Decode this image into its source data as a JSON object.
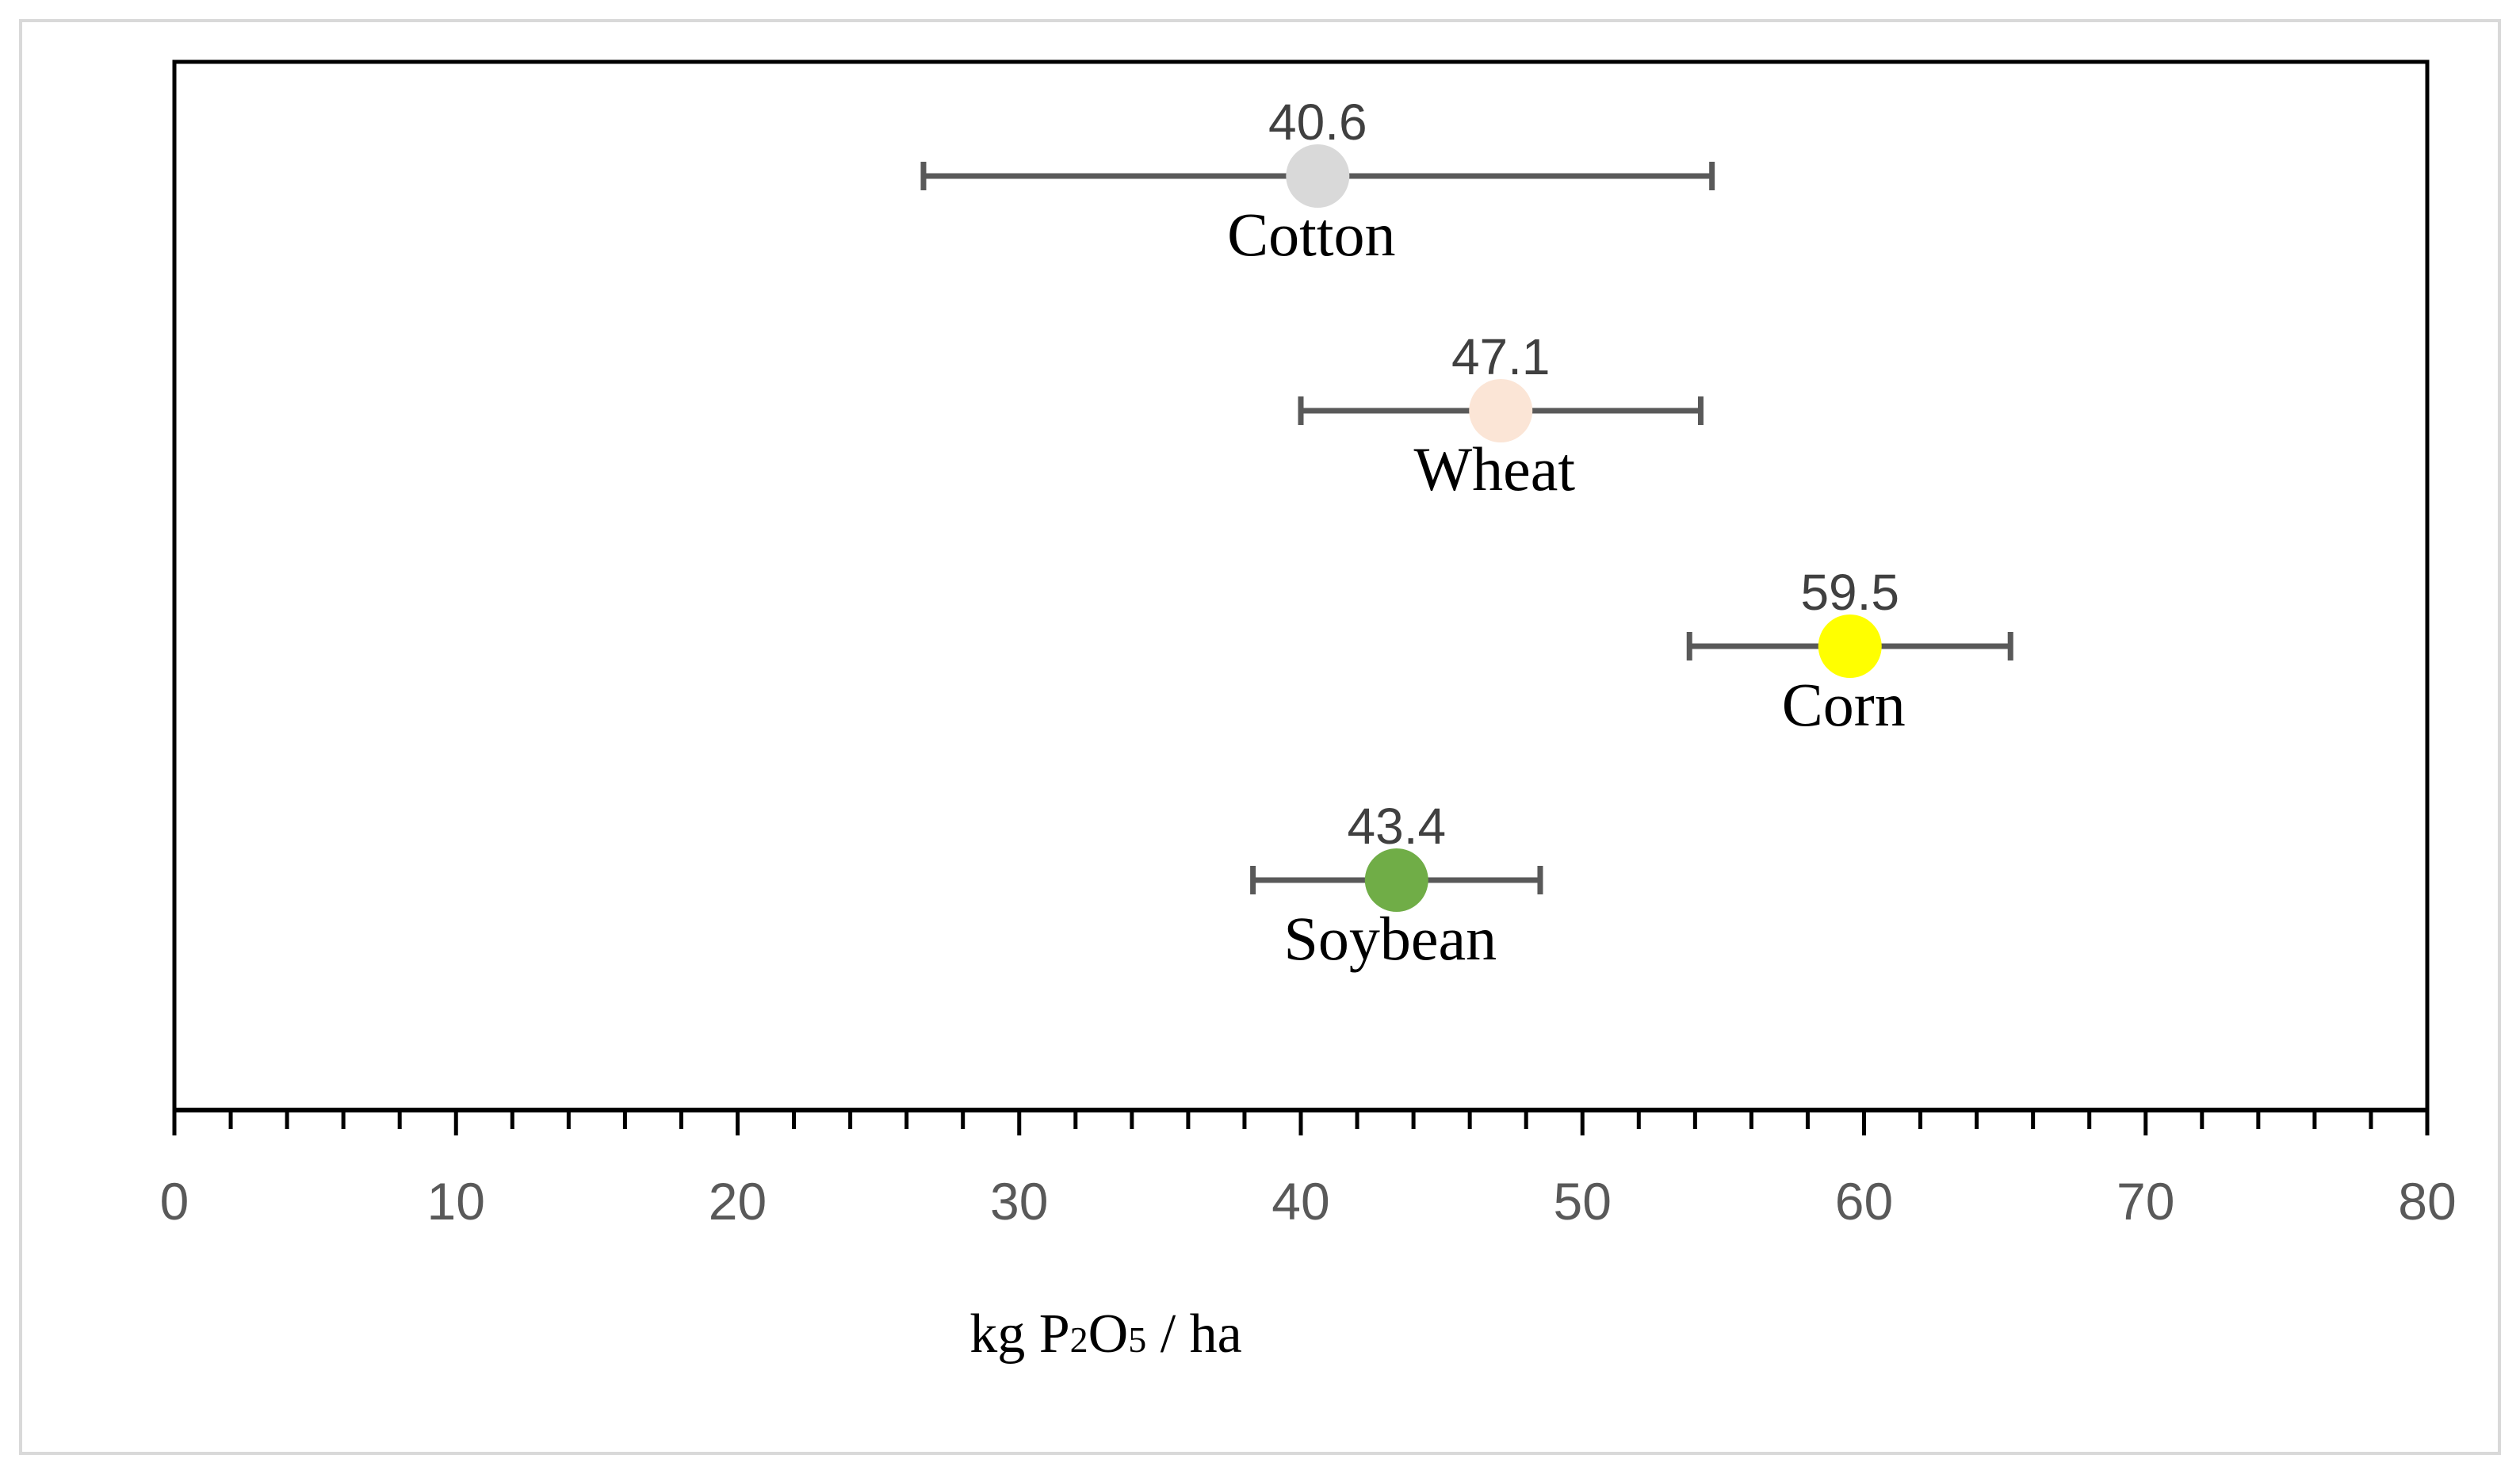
{
  "chart_data": {
    "type": "scatter",
    "orientation": "horizontal",
    "title": "",
    "xlabel": {
      "prefix": "kg P",
      "sub1": "2",
      "mid": "O",
      "sub2": "5",
      "suffix": " / ha"
    },
    "ylabel": "",
    "xlim": [
      0,
      80
    ],
    "x_major_ticks": [
      0,
      10,
      20,
      30,
      40,
      50,
      60,
      70,
      80
    ],
    "x_tick_labels": [
      "0",
      "10",
      "20",
      "30",
      "40",
      "50",
      "60",
      "70",
      "80"
    ],
    "x_minor_step": 2,
    "grid": false,
    "legend": "none",
    "series": [
      {
        "name": "Cotton",
        "value": 40.6,
        "label": "40.6",
        "err_low": 26.6,
        "err_high": 54.6,
        "color": "#d9d9d9"
      },
      {
        "name": "Wheat",
        "value": 47.1,
        "label": "47.1",
        "err_low": 40.0,
        "err_high": 54.2,
        "color": "#fbe5d6"
      },
      {
        "name": "Corn",
        "value": 59.5,
        "label": "59.5",
        "err_low": 53.8,
        "err_high": 65.2,
        "color": "#ffff00"
      },
      {
        "name": "Soybean",
        "value": 43.4,
        "label": "43.4",
        "err_low": 38.3,
        "err_high": 48.5,
        "color": "#70ad47"
      }
    ],
    "colors": {
      "errorbar": "#595959",
      "axis": "#000000",
      "value_label": "#404040",
      "tick_label": "#595959",
      "frame": "#d9d9d9"
    }
  }
}
